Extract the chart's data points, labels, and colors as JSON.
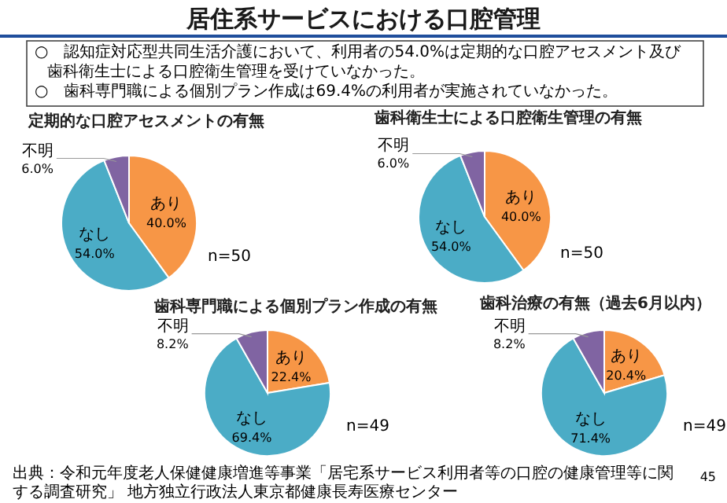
{
  "chart_data": [
    {
      "type": "other",
      "title": "居住系サービスにおける口腔管理",
      "annotations": [
        "○　認知症対応型共同生活介護において、利用者の54.0%は定期的な口腔アセスメント及び歯科衛生士による口腔衛生管理を受けていなかった。",
        "○　歯科専門職による個別プラン作成は69.4%の利用者が実施されていなかった。",
        "出典：令和元年度老人保健健康増進等事業「居宅系サービス利用者等の口腔の健康管理等に関する調査研究」 地方独立行政法人東京都健康長寿医療センター",
        "45"
      ]
    },
    {
      "type": "pie",
      "title": "定期的な口腔アセスメントの有無",
      "categories": [
        "あり",
        "なし",
        "不明"
      ],
      "values": [
        40.0,
        54.0,
        6.0
      ],
      "value_labels": [
        "40.0%",
        "54.0%",
        "6.0%"
      ],
      "colors": [
        "#f79646",
        "#4bacc6",
        "#8064a2"
      ],
      "annotations": [
        "n=50"
      ]
    },
    {
      "type": "pie",
      "title": "歯科衛生士による口腔衛生管理の有無",
      "categories": [
        "あり",
        "なし",
        "不明"
      ],
      "values": [
        40.0,
        54.0,
        6.0
      ],
      "value_labels": [
        "40.0%",
        "54.0%",
        "6.0%"
      ],
      "colors": [
        "#f79646",
        "#4bacc6",
        "#8064a2"
      ],
      "annotations": [
        "n=50"
      ]
    },
    {
      "type": "pie",
      "title": "歯科専門職による個別プラン作成の有無",
      "categories": [
        "あり",
        "なし",
        "不明"
      ],
      "values": [
        22.4,
        69.4,
        8.2
      ],
      "value_labels": [
        "22.4%",
        "69.4%",
        "8.2%"
      ],
      "colors": [
        "#f79646",
        "#4bacc6",
        "#8064a2"
      ],
      "annotations": [
        "n=49"
      ]
    },
    {
      "type": "pie",
      "title": "歯科治療の有無（過去6月以内）",
      "categories": [
        "あり",
        "なし",
        "不明"
      ],
      "values": [
        20.4,
        71.4,
        8.2
      ],
      "value_labels": [
        "20.4%",
        "71.4%",
        "8.2%"
      ],
      "colors": [
        "#f79646",
        "#4bacc6",
        "#8064a2"
      ],
      "annotations": [
        "n=49"
      ]
    }
  ]
}
